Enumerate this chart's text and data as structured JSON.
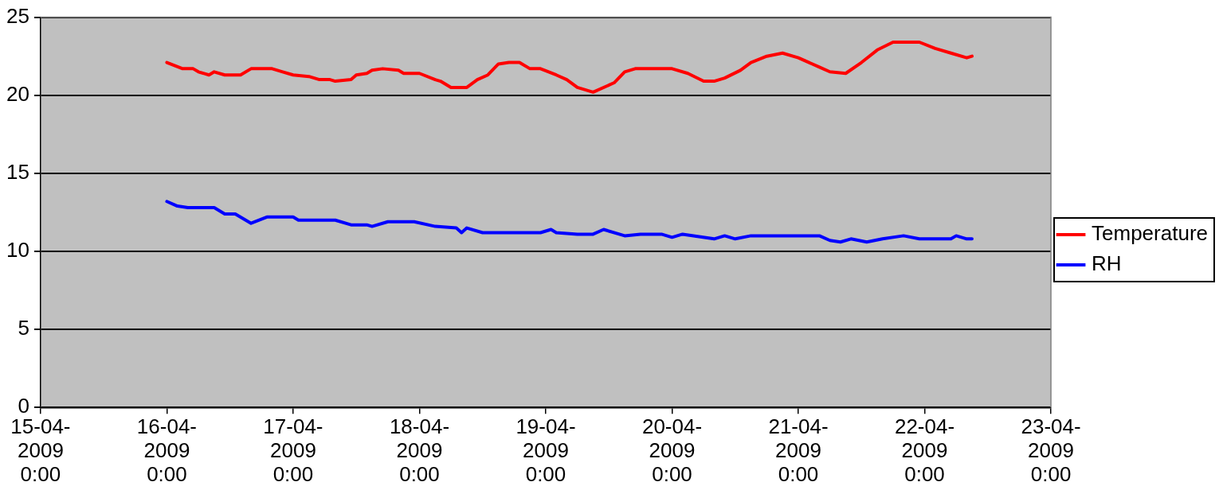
{
  "chart_data": {
    "type": "line",
    "xlim": [
      "2009-04-15T00:00",
      "2009-04-23T00:00"
    ],
    "xticks": [
      {
        "value": "2009-04-15T00:00",
        "label": "15-04-2009 0:00"
      },
      {
        "value": "2009-04-16T00:00",
        "label": "16-04-2009 0:00"
      },
      {
        "value": "2009-04-17T00:00",
        "label": "17-04-2009 0:00"
      },
      {
        "value": "2009-04-18T00:00",
        "label": "18-04-2009 0:00"
      },
      {
        "value": "2009-04-19T00:00",
        "label": "19-04-2009 0:00"
      },
      {
        "value": "2009-04-20T00:00",
        "label": "20-04-2009 0:00"
      },
      {
        "value": "2009-04-21T00:00",
        "label": "21-04-2009 0:00"
      },
      {
        "value": "2009-04-22T00:00",
        "label": "22-04-2009 0:00"
      },
      {
        "value": "2009-04-23T00:00",
        "label": "23-04-2009 0:00"
      }
    ],
    "ylim": [
      0,
      25
    ],
    "yticks": [
      0,
      5,
      10,
      15,
      20,
      25
    ],
    "grid": "y",
    "legend": "right",
    "line_style": "solid",
    "series": [
      {
        "name": "Temperature",
        "color": "#ff0000",
        "x": [
          "2009-04-16T00:00",
          "2009-04-16T03:00",
          "2009-04-16T05:00",
          "2009-04-16T06:00",
          "2009-04-16T08:00",
          "2009-04-16T09:00",
          "2009-04-16T11:00",
          "2009-04-16T14:00",
          "2009-04-16T16:00",
          "2009-04-16T20:00",
          "2009-04-16T22:00",
          "2009-04-17T00:00",
          "2009-04-17T03:00",
          "2009-04-17T05:00",
          "2009-04-17T07:00",
          "2009-04-17T08:00",
          "2009-04-17T11:00",
          "2009-04-17T12:00",
          "2009-04-17T14:00",
          "2009-04-17T15:00",
          "2009-04-17T17:00",
          "2009-04-17T20:00",
          "2009-04-17T21:00",
          "2009-04-18T00:00",
          "2009-04-18T03:00",
          "2009-04-18T04:00",
          "2009-04-18T06:00",
          "2009-04-18T09:00",
          "2009-04-18T11:00",
          "2009-04-18T13:00",
          "2009-04-18T15:00",
          "2009-04-18T17:00",
          "2009-04-18T19:00",
          "2009-04-18T21:00",
          "2009-04-18T23:00",
          "2009-04-19T02:00",
          "2009-04-19T04:00",
          "2009-04-19T06:00",
          "2009-04-19T09:00",
          "2009-04-19T13:00",
          "2009-04-19T15:00",
          "2009-04-19T17:00",
          "2009-04-20T00:00",
          "2009-04-20T03:00",
          "2009-04-20T06:00",
          "2009-04-20T08:00",
          "2009-04-20T10:00",
          "2009-04-20T13:00",
          "2009-04-20T15:00",
          "2009-04-20T18:00",
          "2009-04-20T21:00",
          "2009-04-21T00:00",
          "2009-04-21T04:00",
          "2009-04-21T06:00",
          "2009-04-21T09:00",
          "2009-04-21T12:00",
          "2009-04-21T15:00",
          "2009-04-21T18:00",
          "2009-04-21T23:00",
          "2009-04-22T02:00",
          "2009-04-22T05:00",
          "2009-04-22T08:00",
          "2009-04-22T09:00"
        ],
        "values": [
          22.1,
          21.7,
          21.7,
          21.5,
          21.3,
          21.5,
          21.3,
          21.3,
          21.7,
          21.7,
          21.5,
          21.3,
          21.2,
          21.0,
          21.0,
          20.9,
          21.0,
          21.3,
          21.4,
          21.6,
          21.7,
          21.6,
          21.4,
          21.4,
          21.0,
          20.9,
          20.5,
          20.5,
          21.0,
          21.3,
          22.0,
          22.1,
          22.1,
          21.7,
          21.7,
          21.3,
          21.0,
          20.5,
          20.2,
          20.8,
          21.5,
          21.7,
          21.7,
          21.4,
          20.9,
          20.9,
          21.1,
          21.6,
          22.1,
          22.5,
          22.7,
          22.4,
          21.8,
          21.5,
          21.4,
          22.1,
          22.9,
          23.4,
          23.4,
          23.0,
          22.7,
          22.4,
          22.5
        ]
      },
      {
        "name": "RH",
        "color": "#0000ff",
        "x": [
          "2009-04-16T00:00",
          "2009-04-16T02:00",
          "2009-04-16T04:00",
          "2009-04-16T09:00",
          "2009-04-16T11:00",
          "2009-04-16T13:00",
          "2009-04-16T16:00",
          "2009-04-16T19:00",
          "2009-04-17T00:00",
          "2009-04-17T01:00",
          "2009-04-17T08:00",
          "2009-04-17T11:00",
          "2009-04-17T14:00",
          "2009-04-17T15:00",
          "2009-04-17T18:00",
          "2009-04-17T23:00",
          "2009-04-18T03:00",
          "2009-04-18T07:00",
          "2009-04-18T08:00",
          "2009-04-18T09:00",
          "2009-04-18T12:00",
          "2009-04-18T23:00",
          "2009-04-19T01:00",
          "2009-04-19T02:00",
          "2009-04-19T06:00",
          "2009-04-19T09:00",
          "2009-04-19T11:00",
          "2009-04-19T15:00",
          "2009-04-19T18:00",
          "2009-04-19T22:00",
          "2009-04-20T00:00",
          "2009-04-20T02:00",
          "2009-04-20T08:00",
          "2009-04-20T10:00",
          "2009-04-20T12:00",
          "2009-04-20T15:00",
          "2009-04-21T04:00",
          "2009-04-21T06:00",
          "2009-04-21T08:00",
          "2009-04-21T10:00",
          "2009-04-21T13:00",
          "2009-04-21T16:00",
          "2009-04-21T20:00",
          "2009-04-21T23:00",
          "2009-04-22T05:00",
          "2009-04-22T06:00",
          "2009-04-22T08:00",
          "2009-04-22T09:00"
        ],
        "values": [
          13.2,
          12.9,
          12.8,
          12.8,
          12.4,
          12.4,
          11.8,
          12.2,
          12.2,
          12.0,
          12.0,
          11.7,
          11.7,
          11.6,
          11.9,
          11.9,
          11.6,
          11.5,
          11.2,
          11.5,
          11.2,
          11.2,
          11.4,
          11.2,
          11.1,
          11.1,
          11.4,
          11.0,
          11.1,
          11.1,
          10.9,
          11.1,
          10.8,
          11.0,
          10.8,
          11.0,
          11.0,
          10.7,
          10.6,
          10.8,
          10.6,
          10.8,
          11.0,
          10.8,
          10.8,
          11.0,
          10.8,
          10.8
        ]
      }
    ]
  }
}
